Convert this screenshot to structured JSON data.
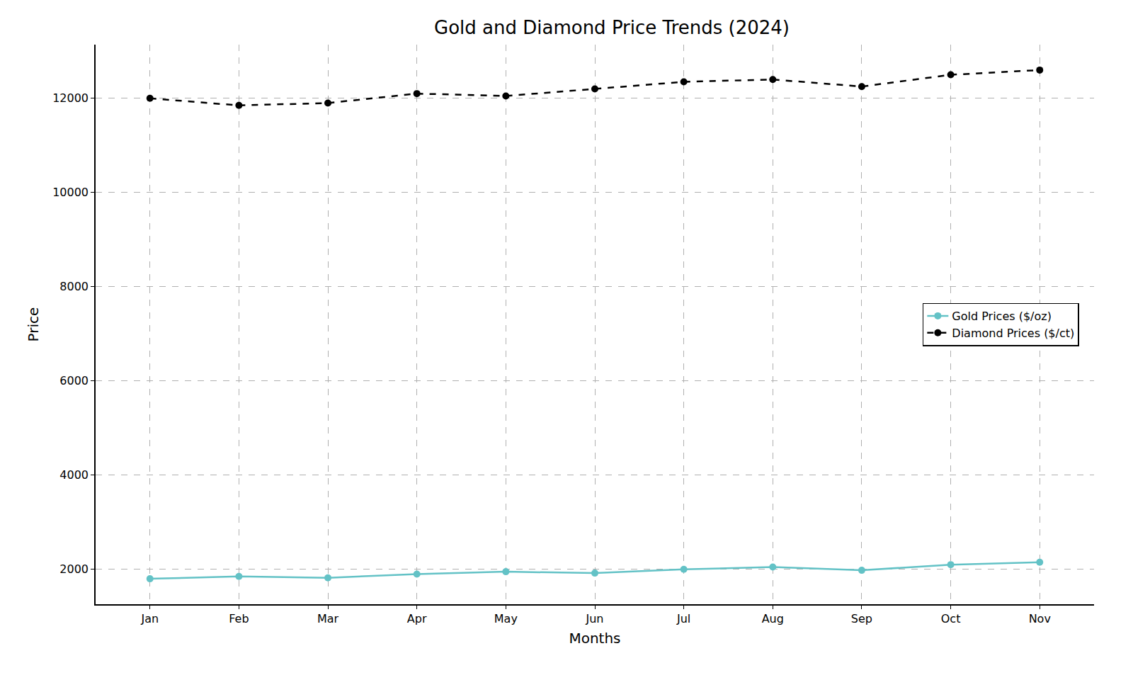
{
  "chart_data": {
    "type": "line",
    "title": "Gold and Diamond Price Trends (2024)",
    "x_label": "Months",
    "y_label": "Price",
    "categories": [
      "Jan",
      "Feb",
      "Mar",
      "Apr",
      "May",
      "Jun",
      "Jul",
      "Aug",
      "Sep",
      "Oct",
      "Nov"
    ],
    "series": [
      {
        "name": "Gold Prices ($/oz)",
        "color": "#63c2c6",
        "marker": "circle",
        "line_style": "solid",
        "values": [
          1800,
          1850,
          1820,
          1900,
          1950,
          1920,
          2000,
          2050,
          1980,
          2100,
          2150
        ]
      },
      {
        "name": "Diamond Prices ($/ct)",
        "color": "#000000",
        "marker": "circle",
        "line_style": "dash",
        "values": [
          12000,
          11850,
          11900,
          12100,
          12050,
          12200,
          12350,
          12400,
          12250,
          12500,
          12600
        ]
      }
    ],
    "ylim": [
      1260,
      13140
    ],
    "yticks": [
      2000,
      4000,
      6000,
      8000,
      10000,
      12000
    ],
    "grid": true,
    "legend": "center right"
  }
}
